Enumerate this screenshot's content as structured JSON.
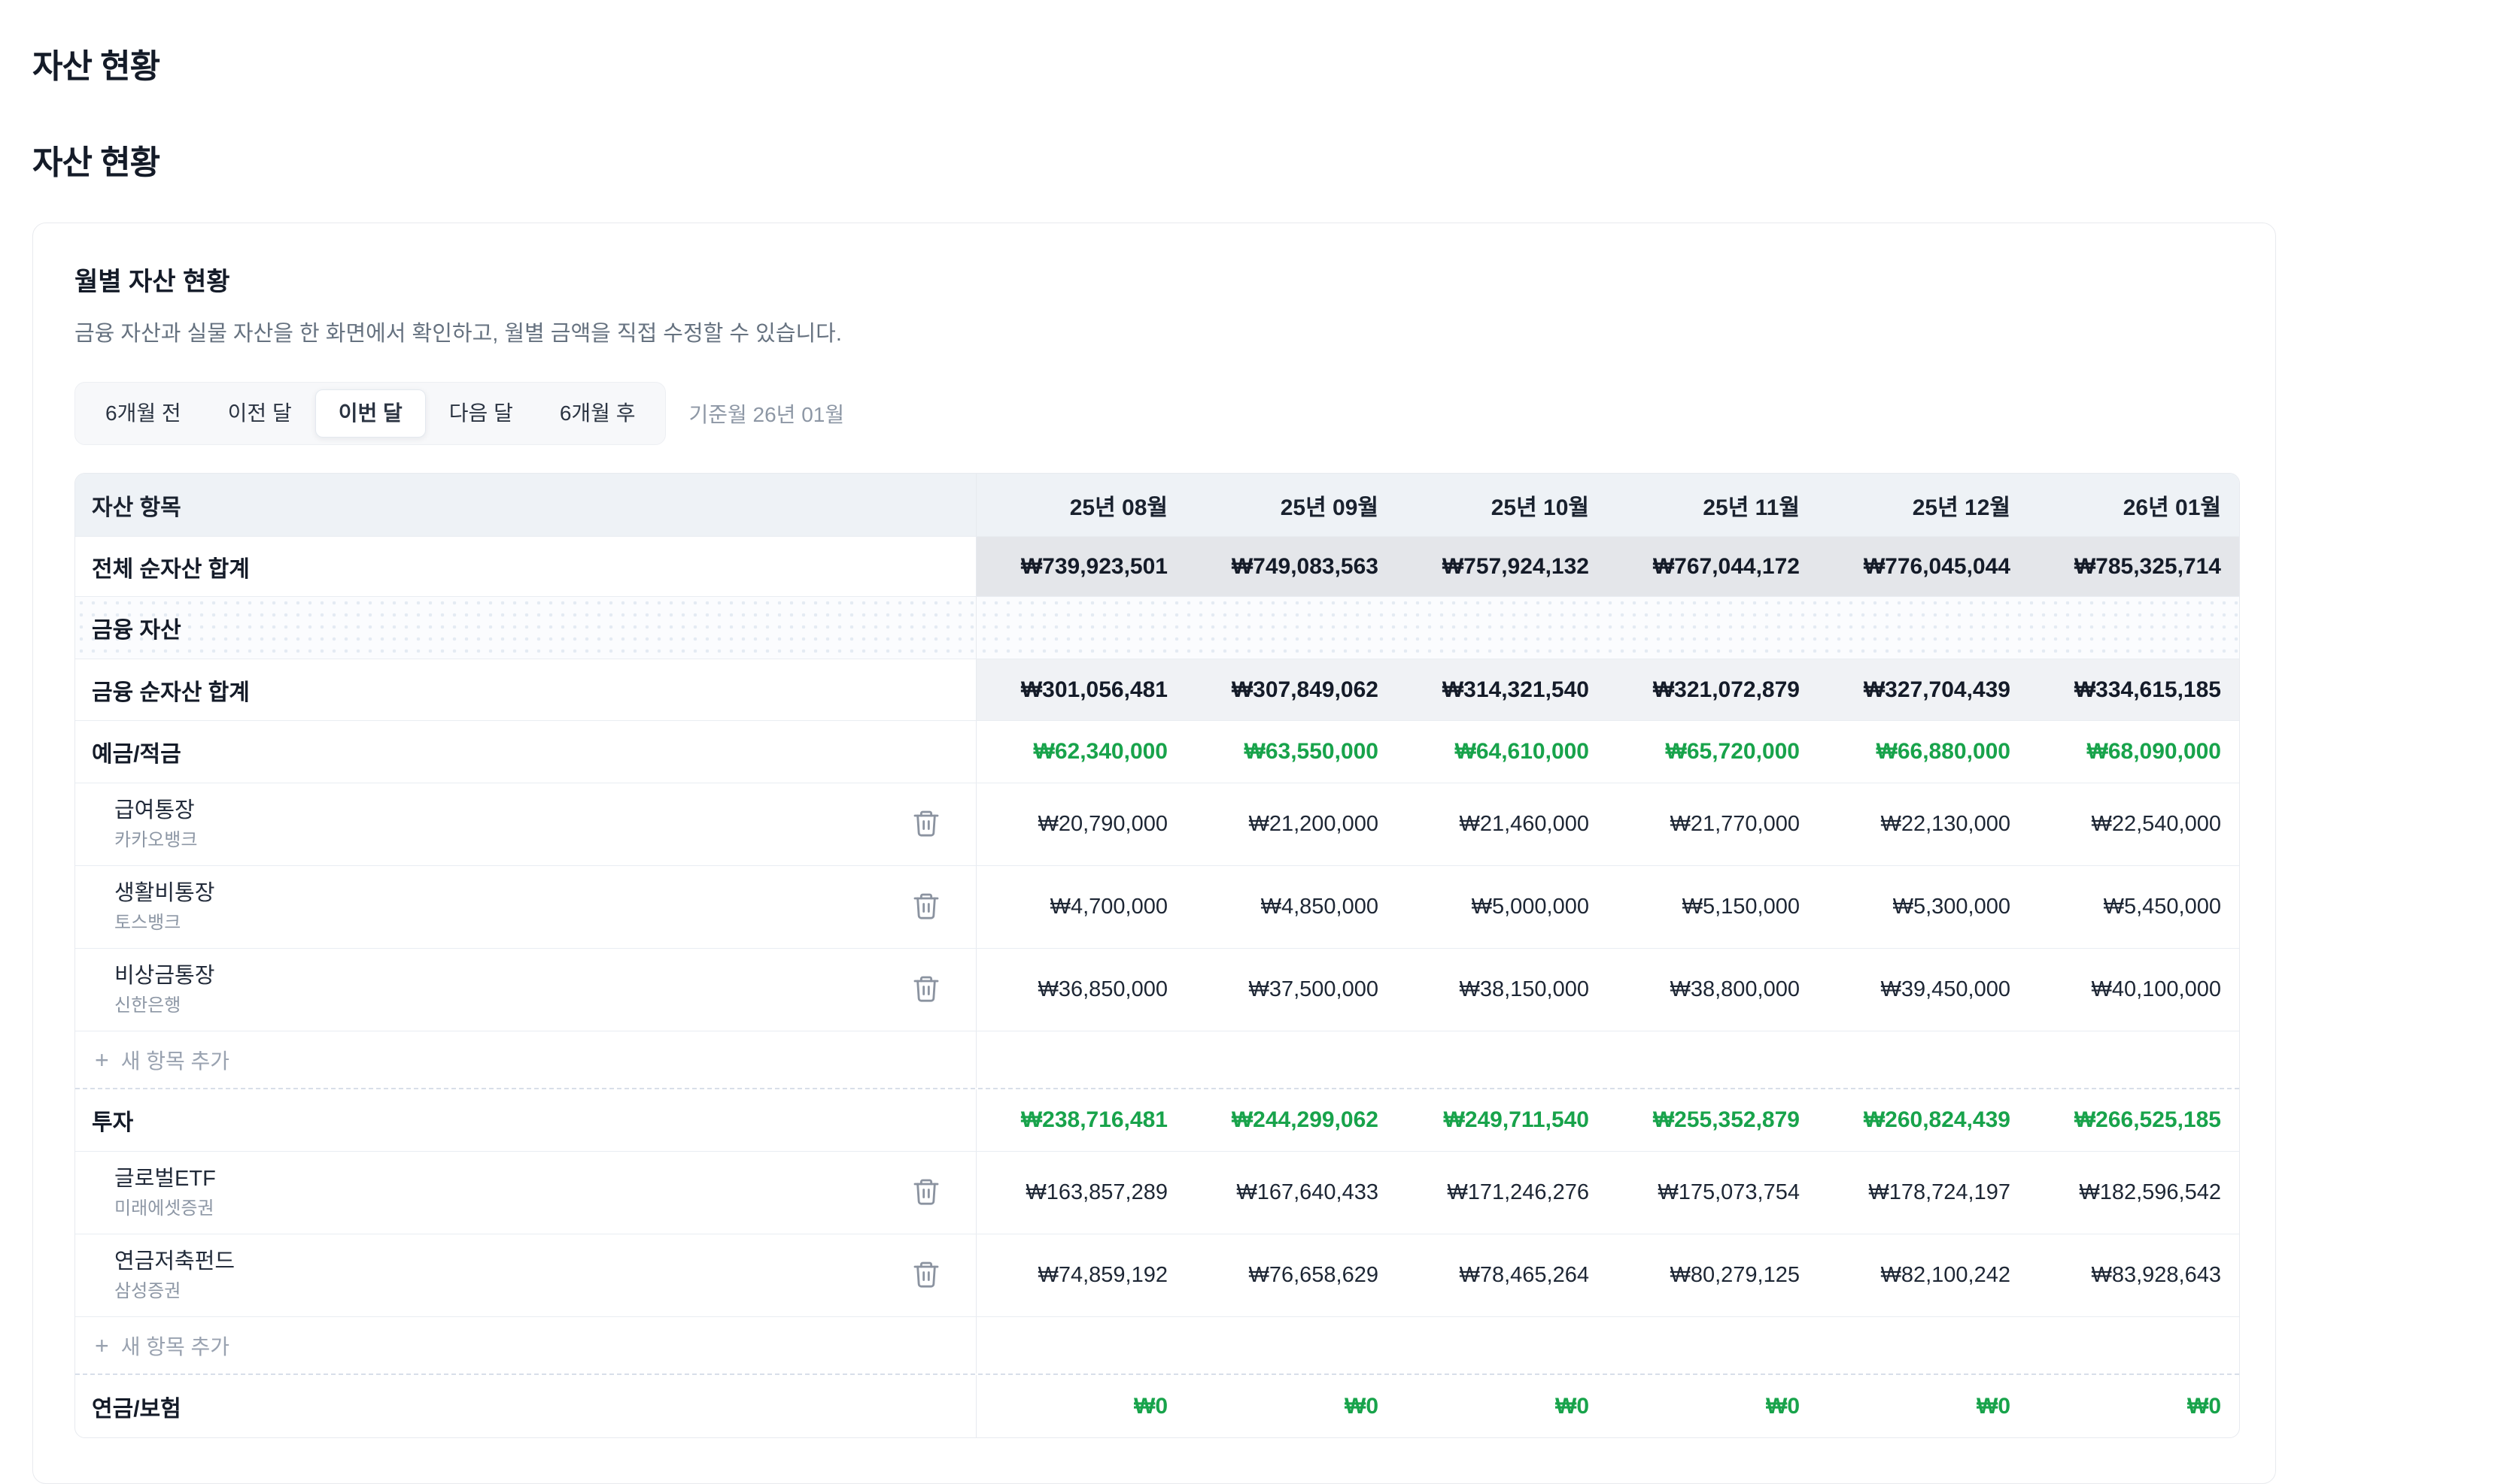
{
  "page": {
    "heading_primary": "자산 현황",
    "heading_secondary": "자산 현황"
  },
  "card": {
    "title": "월별 자산 현황",
    "description": "금융 자산과 실물 자산을 한 화면에서 확인하고, 월별 금액을 직접 수정할 수 있습니다.",
    "nav": {
      "buttons": [
        {
          "label": "6개월 전"
        },
        {
          "label": "이전 달"
        },
        {
          "label": "이번 달"
        },
        {
          "label": "다음 달"
        },
        {
          "label": "6개월 후"
        }
      ],
      "selected_index": 2,
      "caption": "기준월 26년 01월"
    }
  },
  "table": {
    "header": {
      "asset_col": "자산 항목",
      "months": [
        "25년 08월",
        "25년 09월",
        "25년 10월",
        "25년 11월",
        "25년 12월",
        "26년 01월"
      ]
    },
    "rows": [
      {
        "type": "total",
        "label": "전체 순자산 합계",
        "values": [
          "₩739,923,501",
          "₩749,083,563",
          "₩757,924,132",
          "₩767,044,172",
          "₩776,045,044",
          "₩785,325,714"
        ]
      },
      {
        "type": "section",
        "label": "금융 자산",
        "values": [
          "",
          "",
          "",
          "",
          "",
          ""
        ]
      },
      {
        "type": "subtotal",
        "label": "금융 순자산 합계",
        "values": [
          "₩301,056,481",
          "₩307,849,062",
          "₩314,321,540",
          "₩321,072,879",
          "₩327,704,439",
          "₩334,615,185"
        ]
      },
      {
        "type": "category",
        "label": "예금/적금",
        "values": [
          "₩62,340,000",
          "₩63,550,000",
          "₩64,610,000",
          "₩65,720,000",
          "₩66,880,000",
          "₩68,090,000"
        ]
      },
      {
        "type": "item",
        "label": "급여통장",
        "institution": "카카오뱅크",
        "values": [
          "₩20,790,000",
          "₩21,200,000",
          "₩21,460,000",
          "₩21,770,000",
          "₩22,130,000",
          "₩22,540,000"
        ]
      },
      {
        "type": "item",
        "label": "생활비통장",
        "institution": "토스뱅크",
        "values": [
          "₩4,700,000",
          "₩4,850,000",
          "₩5,000,000",
          "₩5,150,000",
          "₩5,300,000",
          "₩5,450,000"
        ]
      },
      {
        "type": "item",
        "label": "비상금통장",
        "institution": "신한은행",
        "values": [
          "₩36,850,000",
          "₩37,500,000",
          "₩38,150,000",
          "₩38,800,000",
          "₩39,450,000",
          "₩40,100,000"
        ]
      },
      {
        "type": "add",
        "label": "새 항목 추가"
      },
      {
        "type": "category",
        "label": "투자",
        "values": [
          "₩238,716,481",
          "₩244,299,062",
          "₩249,711,540",
          "₩255,352,879",
          "₩260,824,439",
          "₩266,525,185"
        ]
      },
      {
        "type": "item",
        "label": "글로벌ETF",
        "institution": "미래에셋증권",
        "values": [
          "₩163,857,289",
          "₩167,640,433",
          "₩171,246,276",
          "₩175,073,754",
          "₩178,724,197",
          "₩182,596,542"
        ]
      },
      {
        "type": "item",
        "label": "연금저축펀드",
        "institution": "삼성증권",
        "values": [
          "₩74,859,192",
          "₩76,658,629",
          "₩78,465,264",
          "₩80,279,125",
          "₩82,100,242",
          "₩83,928,643"
        ]
      },
      {
        "type": "add",
        "label": "새 항목 추가"
      },
      {
        "type": "category",
        "label": "연금/보험",
        "values": [
          "₩0",
          "₩0",
          "₩0",
          "₩0",
          "₩0",
          "₩0"
        ]
      }
    ]
  },
  "colors": {
    "positive_green": "#18a34b",
    "total_row_bg": "#e4e6ea",
    "subtotal_row_bg": "#f0f2f5",
    "header_bg": "#eef2f6"
  },
  "icons": {
    "trash": "trash-icon",
    "plus": "plus-icon"
  }
}
